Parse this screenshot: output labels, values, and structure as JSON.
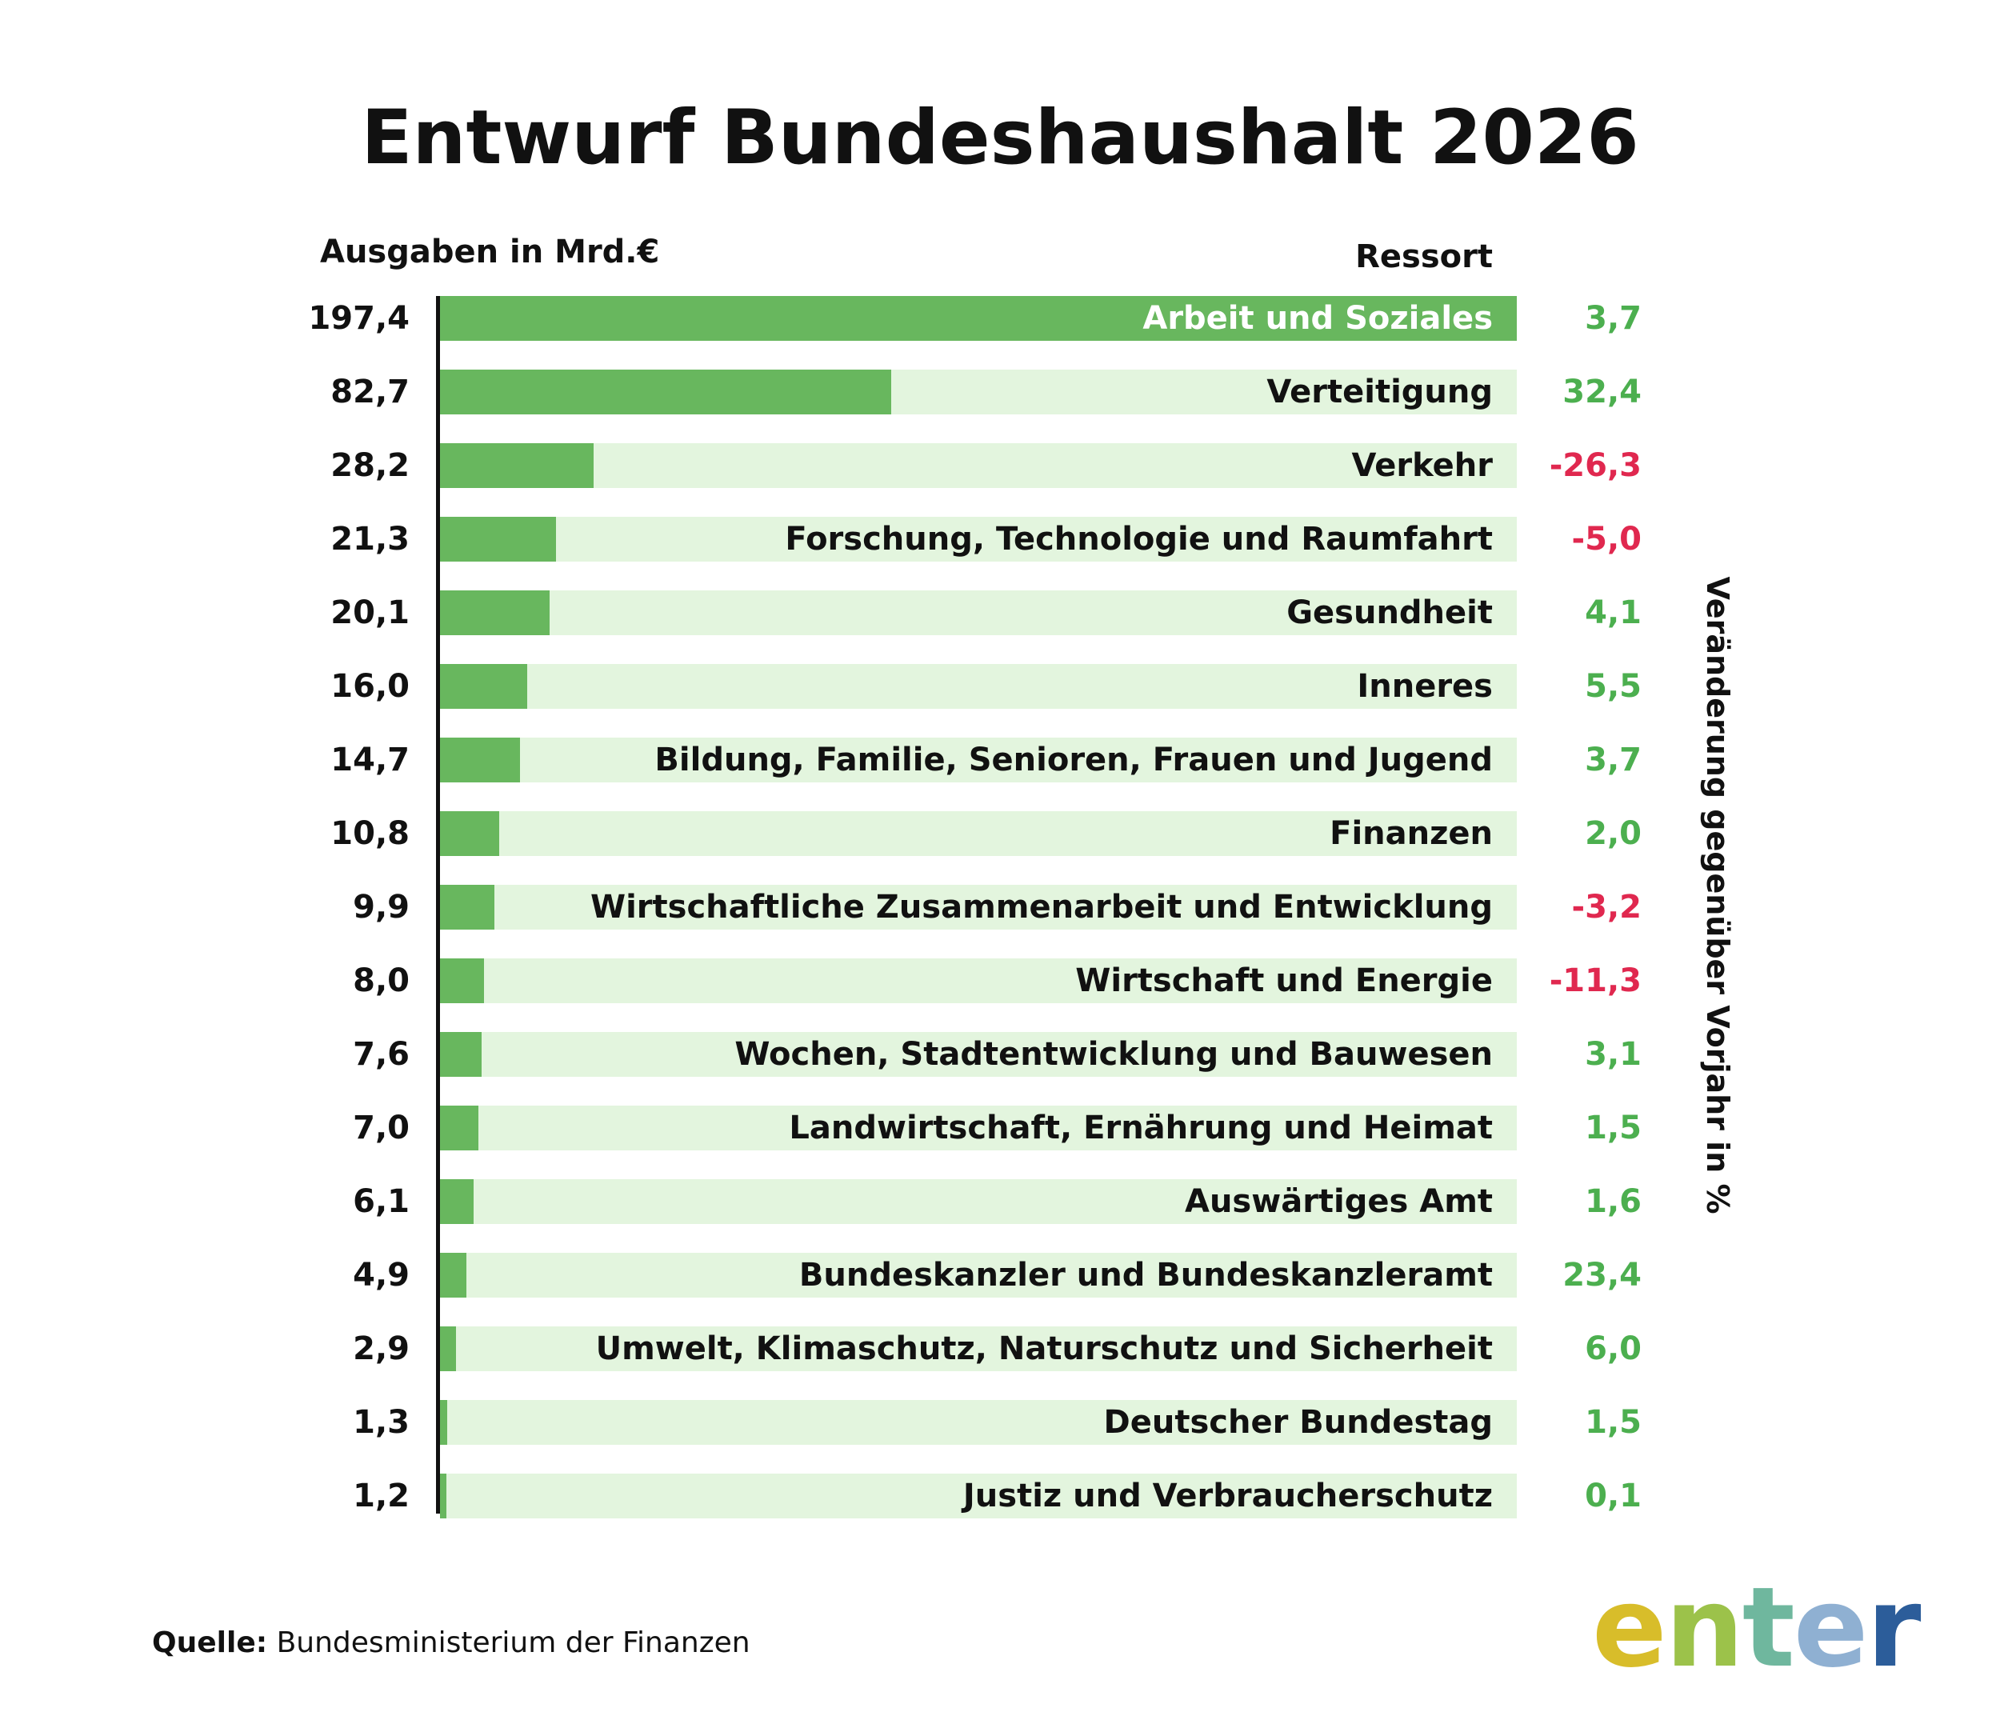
{
  "title": "Entwurf Bundeshaushalt 2026",
  "left_header": "Ausgaben in Mrd.€",
  "right_header": "Ressort",
  "side_label": "Veränderung gegenüber Vorjahr in %",
  "source_label": "Quelle:",
  "source_text": "Bundesministerium der Finanzen",
  "logo": {
    "text": "enter",
    "letters": [
      "e",
      "n",
      "t",
      "e",
      "r"
    ],
    "colors": [
      "#d8bd2a",
      "#9cc24a",
      "#6fb79e",
      "#8fb0d2",
      "#2c5d9a"
    ]
  },
  "colors": {
    "bar": "#68b75e",
    "track": "#e3f5de",
    "positive": "#4caf4f",
    "negative": "#e0284f",
    "text": "#111111"
  },
  "chart_data": {
    "type": "bar",
    "orientation": "horizontal",
    "title": "Entwurf Bundeshaushalt 2026",
    "xlabel": "Ausgaben in Mrd.€",
    "ylabel": "Ressort",
    "xlim": [
      0,
      197.4
    ],
    "categories": [
      "Arbeit und Soziales",
      "Verteitigung",
      "Verkehr",
      "Forschung, Technologie und Raumfahrt",
      "Gesundheit",
      "Inneres",
      "Bildung, Familie, Senioren, Frauen und Jugend",
      "Finanzen",
      "Wirtschaftliche Zusammenarbeit und Entwicklung",
      "Wirtschaft und Energie",
      "Wochen, Stadtentwicklung und Bauwesen",
      "Landwirtschaft, Ernährung und Heimat",
      "Auswärtiges Amt",
      "Bundeskanzler und Bundeskanzleramt",
      "Umwelt, Klimaschutz, Naturschutz  und Sicherheit",
      "Deutscher Bundestag",
      "Justiz und Verbraucherschutz"
    ],
    "values": [
      197.4,
      82.7,
      28.2,
      21.3,
      20.1,
      16.0,
      14.7,
      10.8,
      9.9,
      8.0,
      7.6,
      7.0,
      6.1,
      4.9,
      2.9,
      1.3,
      1.2
    ],
    "value_labels": [
      "197,4",
      "82,7",
      "28,2",
      "21,3",
      "20,1",
      "16,0",
      "14,7",
      "10,8",
      "9,9",
      "8,0",
      "7,6",
      "7,0",
      "6,1",
      "4,9",
      "2,9",
      "1,3",
      "1,2"
    ],
    "change": [
      3.7,
      32.4,
      -26.3,
      -5.0,
      4.1,
      5.5,
      3.7,
      2.0,
      -3.2,
      -11.3,
      3.1,
      1.5,
      1.6,
      23.4,
      6.0,
      1.5,
      0.1
    ],
    "change_labels": [
      "3,7",
      "32,4",
      "-26,3",
      "-5,0",
      "4,1",
      "5,5",
      "3,7",
      "2,0",
      "-3,2",
      "-11,3",
      "3,1",
      "1,5",
      "1,6",
      "23,4",
      "6,0",
      "1,5",
      "0,1"
    ],
    "change_label": "Veränderung gegenüber Vorjahr in %",
    "grid": false,
    "legend": "none"
  }
}
